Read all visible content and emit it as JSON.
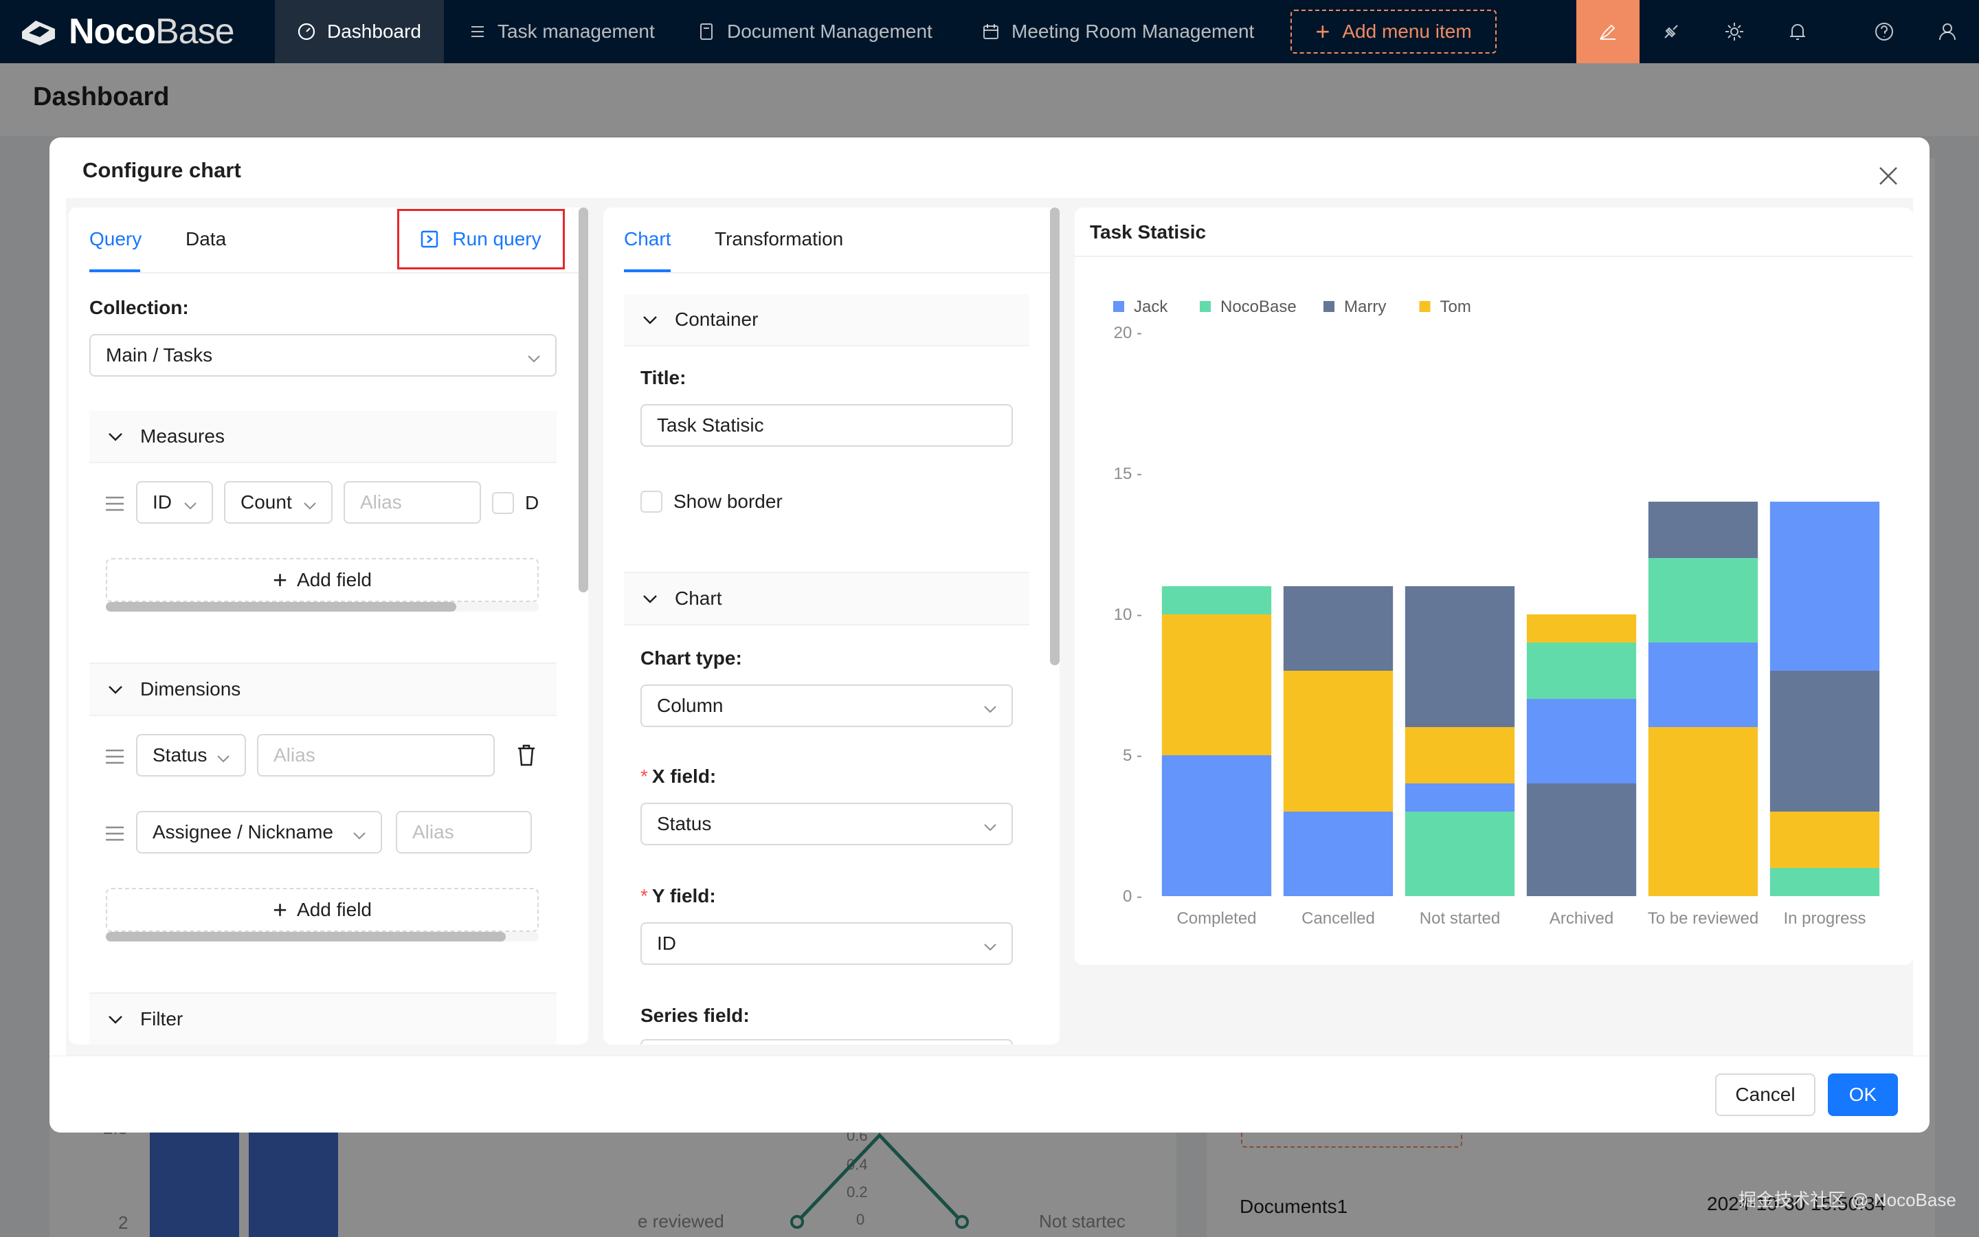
{
  "app": {
    "logo": {
      "bold": "Noco",
      "light": "Base"
    },
    "nav": [
      {
        "label": "Dashboard",
        "icon": "dashboard-icon",
        "active": true
      },
      {
        "label": "Task management",
        "icon": "list-icon",
        "active": false
      },
      {
        "label": "Document Management",
        "icon": "document-icon",
        "active": false
      },
      {
        "label": "Meeting Room Management",
        "icon": "calendar-icon",
        "active": false
      }
    ],
    "add_menu_item": "Add menu item",
    "right_icons": [
      "ui-editor-icon",
      "plugin-icon",
      "settings-icon",
      "bell-icon",
      "help-icon",
      "user-icon"
    ]
  },
  "page": {
    "title": "Dashboard",
    "background": {
      "document_row": "Documents1",
      "document_date": "2024-10-30 15:50:34",
      "radar_labels": [
        "e reviewed",
        "Not startec"
      ],
      "radar_ticks": [
        "0.6",
        "0.4",
        "0.2",
        "0"
      ],
      "y_ticks": [
        "2.5",
        "2"
      ]
    }
  },
  "modal": {
    "title": "Configure chart",
    "query_panel": {
      "tabs": [
        "Query",
        "Data"
      ],
      "active_tab": "Query",
      "run_query": "Run query",
      "collection_label": "Collection",
      "collection_value": "Main  /  Tasks",
      "measures": {
        "title": "Measures",
        "field": "ID",
        "aggregation": "Count",
        "alias_placeholder": "Alias",
        "distinct_label": "D",
        "add_field": "Add field"
      },
      "dimensions": {
        "title": "Dimensions",
        "rows": [
          {
            "field": "Status",
            "alias_placeholder": "Alias"
          },
          {
            "field": "Assignee  /  Nickname",
            "alias_placeholder": "Alias"
          }
        ],
        "add_field": "Add field"
      },
      "filter": {
        "title": "Filter"
      }
    },
    "chart_panel": {
      "tabs": [
        "Chart",
        "Transformation"
      ],
      "active_tab": "Chart",
      "container": {
        "title": "Container",
        "title_label": "Title",
        "title_value": "Task Statisic",
        "show_border": "Show border"
      },
      "chart": {
        "title": "Chart",
        "type_label": "Chart type",
        "type_value": "Column",
        "x_label": "X field",
        "x_value": "Status",
        "y_label": "Y field",
        "y_value": "ID",
        "series_label": "Series field"
      }
    },
    "footer": {
      "cancel": "Cancel",
      "ok": "OK"
    }
  },
  "chart_data": {
    "type": "bar",
    "stacked": true,
    "title": "Task Statisic",
    "categories": [
      "Completed",
      "Cancelled",
      "Not started",
      "Archived",
      "To be reviewed",
      "In progress"
    ],
    "series": [
      {
        "name": "Jack",
        "color": "#6395fa",
        "values": [
          5,
          3,
          1,
          3,
          3,
          6
        ]
      },
      {
        "name": "NocoBase",
        "color": "#62dbab",
        "values": [
          1,
          0,
          3,
          2,
          3,
          1
        ]
      },
      {
        "name": "Marry",
        "color": "#657797",
        "values": [
          0,
          3,
          5,
          4,
          2,
          5
        ]
      },
      {
        "name": "Tom",
        "color": "#f7c122",
        "values": [
          5,
          5,
          2,
          1,
          6,
          2
        ]
      }
    ],
    "stack_order": {
      "Completed": [
        "Jack",
        "Tom",
        "NocoBase"
      ],
      "Cancelled": [
        "Jack",
        "Tom",
        "Marry"
      ],
      "Not started": [
        "NocoBase",
        "Jack",
        "Tom",
        "Marry"
      ],
      "Archived": [
        "Marry",
        "Jack",
        "NocoBase",
        "Tom"
      ],
      "To be reviewed": [
        "Tom",
        "Jack",
        "NocoBase",
        "Marry"
      ],
      "In progress": [
        "NocoBase",
        "Tom",
        "Marry",
        "Jack"
      ]
    },
    "y_ticks": [
      0,
      5,
      10,
      15,
      20
    ],
    "ylim": [
      0,
      20
    ],
    "legend_position": "top-left",
    "grid": false
  },
  "watermark": "掘金技术社区 @ NocoBase"
}
